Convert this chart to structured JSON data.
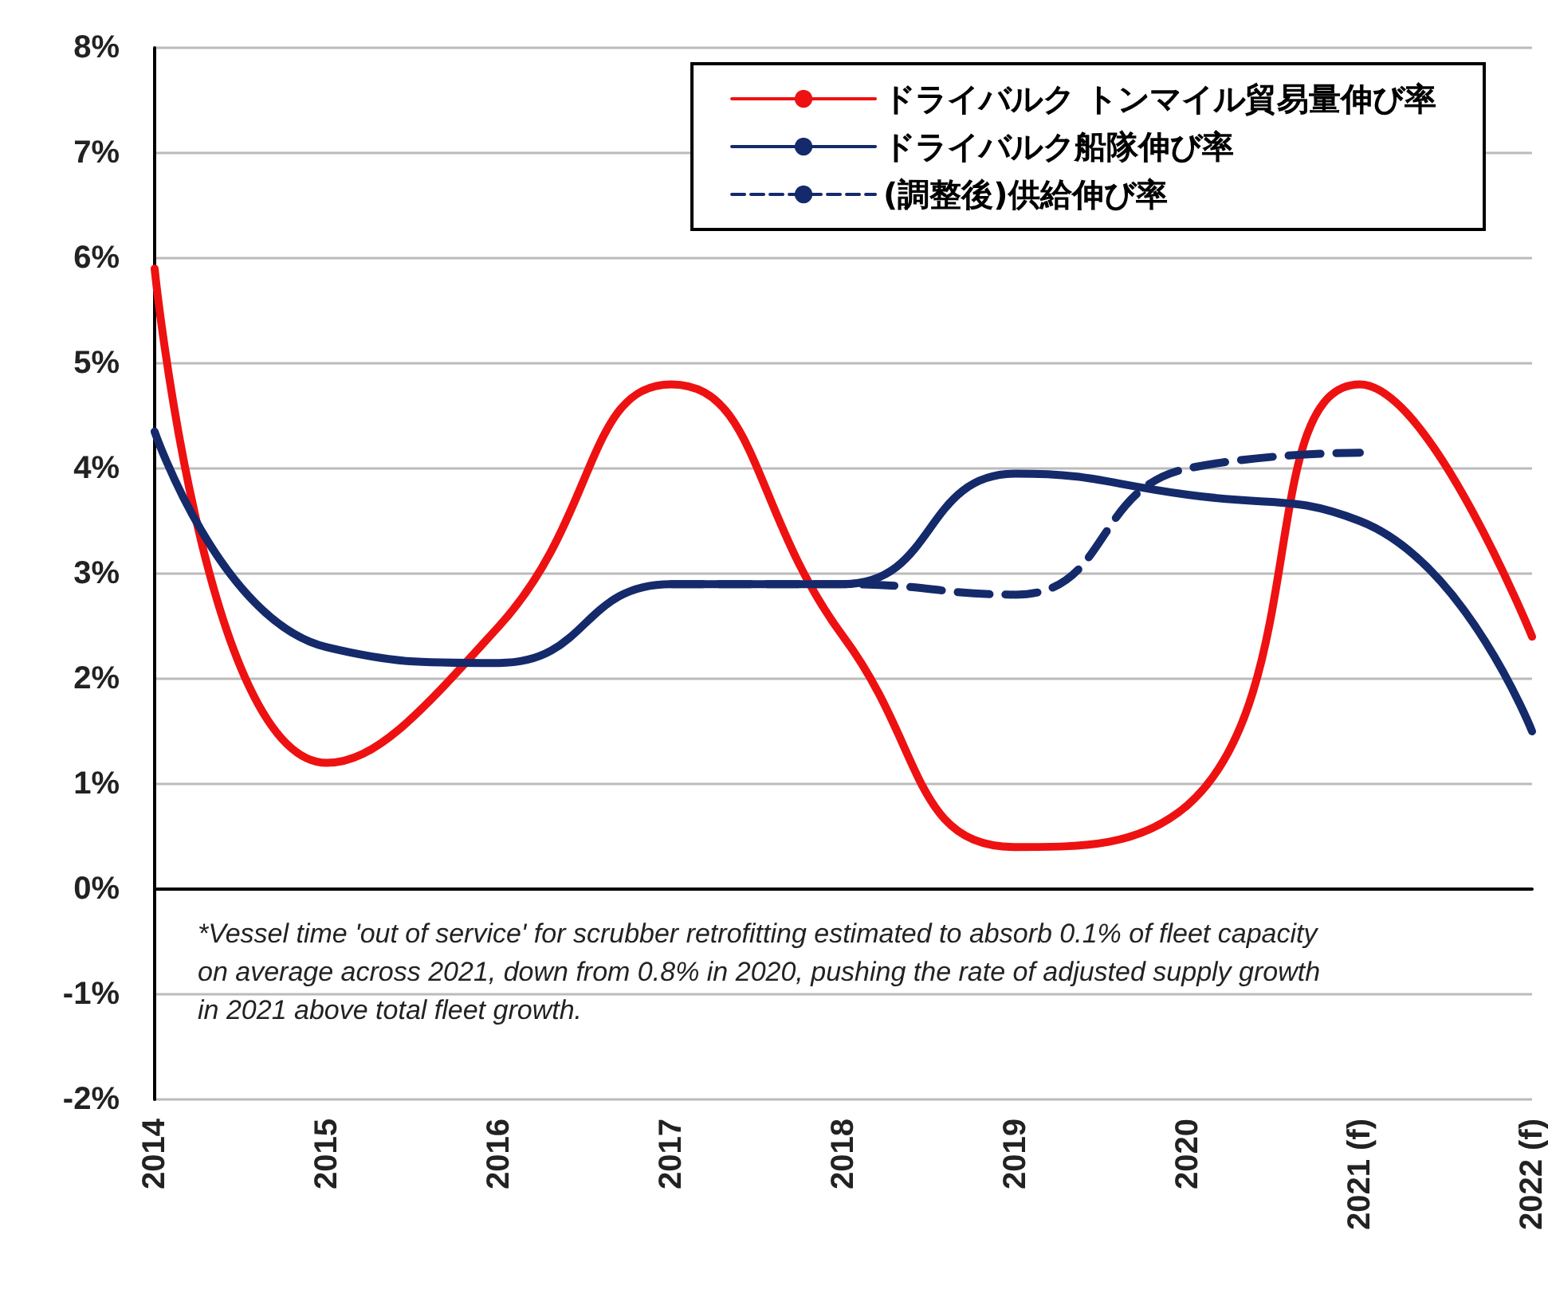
{
  "chart_data": {
    "type": "line",
    "categories": [
      "2014",
      "2015",
      "2016",
      "2017",
      "2018",
      "2019",
      "2020",
      "2021 (f)",
      "2022 (f)"
    ],
    "series": [
      {
        "name": "ドライバルク トンマイル貿易量伸び率",
        "color": "#ee1111",
        "values": [
          5.9,
          1.2,
          2.5,
          4.8,
          2.4,
          0.4,
          0.8,
          4.8,
          2.4
        ]
      },
      {
        "name": "ドライバルク船隊伸び率",
        "color": "#142a6b",
        "values": [
          4.35,
          2.3,
          2.15,
          2.9,
          2.9,
          3.95,
          3.75,
          3.5,
          1.5
        ]
      },
      {
        "name": "(調整後)供給伸び率",
        "color": "#142a6b",
        "line_style": "dashed",
        "values": [
          null,
          null,
          null,
          2.9,
          2.9,
          2.8,
          4.0,
          4.15,
          null
        ]
      }
    ],
    "ylim": [
      -2,
      8
    ],
    "yticks": [
      {
        "value": -2,
        "label": "-2%"
      },
      {
        "value": -1,
        "label": "-1%"
      },
      {
        "value": 0,
        "label": "0%"
      },
      {
        "value": 1,
        "label": "1%"
      },
      {
        "value": 2,
        "label": "2%"
      },
      {
        "value": 3,
        "label": "3%"
      },
      {
        "value": 4,
        "label": "4%"
      },
      {
        "value": 5,
        "label": "5%"
      },
      {
        "value": 6,
        "label": "6%"
      },
      {
        "value": 7,
        "label": "7%"
      },
      {
        "value": 8,
        "label": "8%"
      }
    ],
    "grid": "y",
    "legend": "top right",
    "marker": "none",
    "line_style": "solid",
    "annotations": [
      "*Vessel time 'out of service' for scrubber retrofitting estimated to absorb 0.1% of fleet capacity on average across 2021, down from 0.8% in 2020, pushing the rate of adjusted supply growth in 2021 above total fleet growth."
    ]
  }
}
